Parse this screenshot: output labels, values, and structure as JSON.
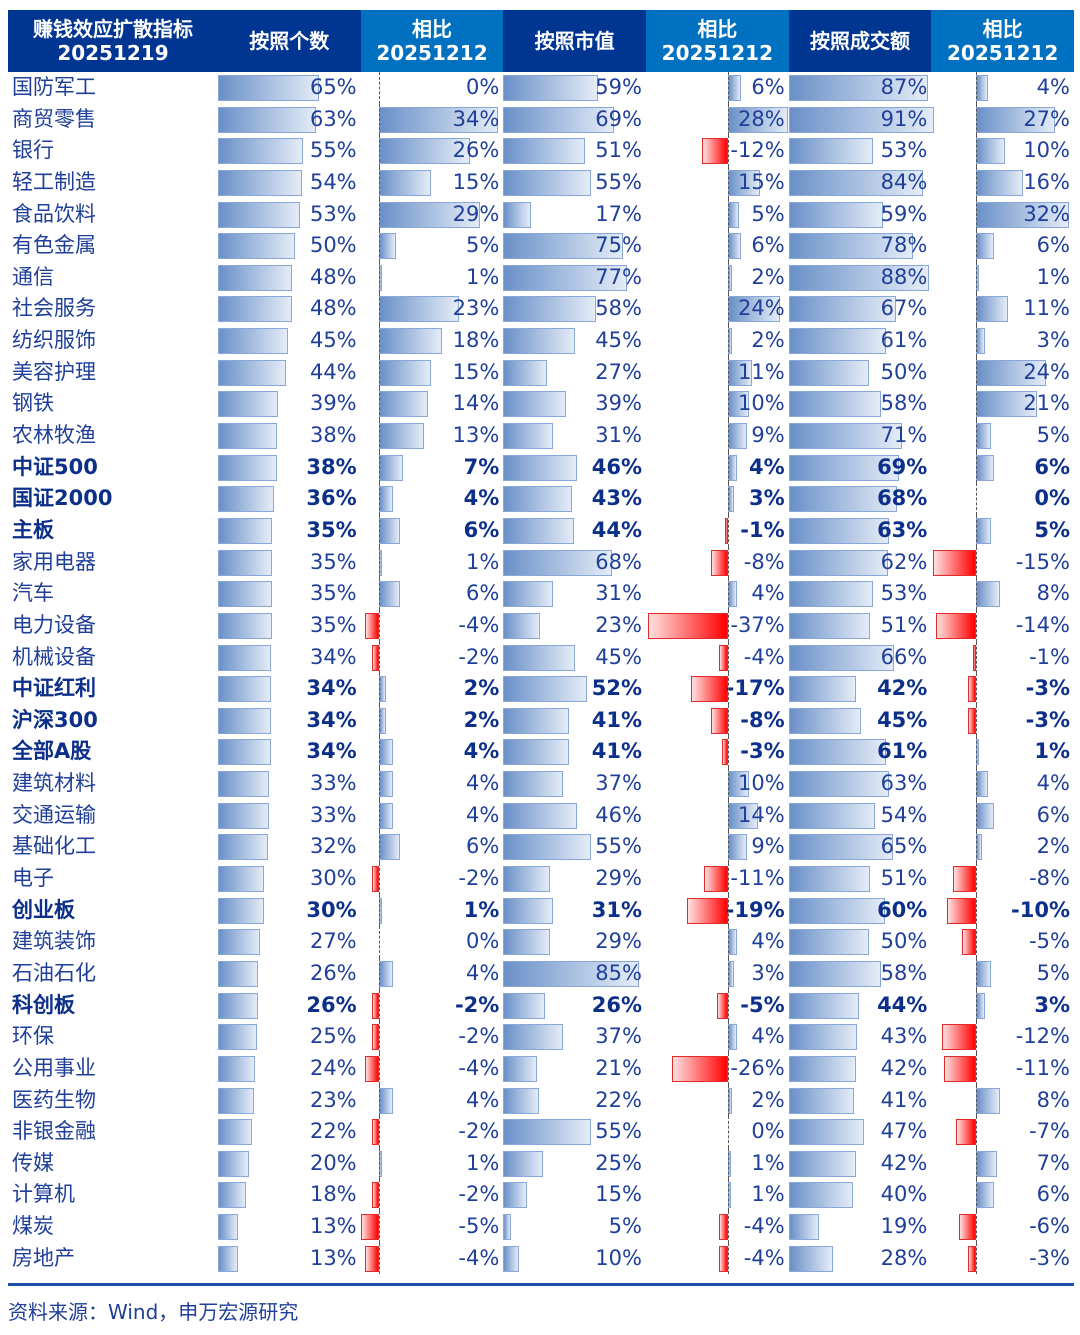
{
  "header": {
    "title_line1": "赚钱效应扩散指标",
    "title_line2": "20251219",
    "columns": [
      {
        "label": "按照个数"
      },
      {
        "label": "相比",
        "sub": "20251212"
      },
      {
        "label": "按照市值"
      },
      {
        "label": "相比",
        "sub": "20251212"
      },
      {
        "label": "按照成交额"
      },
      {
        "label": "相比",
        "sub": "20251212"
      }
    ]
  },
  "colors": {
    "header_dark": "#003591",
    "header_light": "#0070c0",
    "positive_bar": "#6a90c8",
    "negative_bar": "#ff0000",
    "text": "#1f3f99"
  },
  "footer": {
    "source": "资料来源：Wind，申万宏源研究"
  },
  "chart_data": {
    "type": "table",
    "title": "赚钱效应扩散指标 20251219",
    "columns": [
      "按照个数",
      "相比20251212",
      "按照市值",
      "相比20251212",
      "按照成交额",
      "相比20251212"
    ],
    "rows": [
      {
        "name": "国防军工",
        "bold": false,
        "count": 65,
        "count_chg": 0,
        "mktcap": 59,
        "mktcap_chg": 6,
        "turnover": 87,
        "turnover_chg": 4
      },
      {
        "name": "商贸零售",
        "bold": false,
        "count": 63,
        "count_chg": 34,
        "mktcap": 69,
        "mktcap_chg": 28,
        "turnover": 91,
        "turnover_chg": 27
      },
      {
        "name": "银行",
        "bold": false,
        "count": 55,
        "count_chg": 26,
        "mktcap": 51,
        "mktcap_chg": -12,
        "turnover": 53,
        "turnover_chg": 10
      },
      {
        "name": "轻工制造",
        "bold": false,
        "count": 54,
        "count_chg": 15,
        "mktcap": 55,
        "mktcap_chg": 15,
        "turnover": 84,
        "turnover_chg": 16
      },
      {
        "name": "食品饮料",
        "bold": false,
        "count": 53,
        "count_chg": 29,
        "mktcap": 17,
        "mktcap_chg": 5,
        "turnover": 59,
        "turnover_chg": 32
      },
      {
        "name": "有色金属",
        "bold": false,
        "count": 50,
        "count_chg": 5,
        "mktcap": 75,
        "mktcap_chg": 6,
        "turnover": 78,
        "turnover_chg": 6
      },
      {
        "name": "通信",
        "bold": false,
        "count": 48,
        "count_chg": 1,
        "mktcap": 77,
        "mktcap_chg": 2,
        "turnover": 88,
        "turnover_chg": 1
      },
      {
        "name": "社会服务",
        "bold": false,
        "count": 48,
        "count_chg": 23,
        "mktcap": 58,
        "mktcap_chg": 24,
        "turnover": 67,
        "turnover_chg": 11
      },
      {
        "name": "纺织服饰",
        "bold": false,
        "count": 45,
        "count_chg": 18,
        "mktcap": 45,
        "mktcap_chg": 2,
        "turnover": 61,
        "turnover_chg": 3
      },
      {
        "name": "美容护理",
        "bold": false,
        "count": 44,
        "count_chg": 15,
        "mktcap": 27,
        "mktcap_chg": 11,
        "turnover": 50,
        "turnover_chg": 24
      },
      {
        "name": "钢铁",
        "bold": false,
        "count": 39,
        "count_chg": 14,
        "mktcap": 39,
        "mktcap_chg": 10,
        "turnover": 58,
        "turnover_chg": 21
      },
      {
        "name": "农林牧渔",
        "bold": false,
        "count": 38,
        "count_chg": 13,
        "mktcap": 31,
        "mktcap_chg": 9,
        "turnover": 71,
        "turnover_chg": 5
      },
      {
        "name": "中证500",
        "bold": true,
        "count": 38,
        "count_chg": 7,
        "mktcap": 46,
        "mktcap_chg": 4,
        "turnover": 69,
        "turnover_chg": 6
      },
      {
        "name": "国证2000",
        "bold": true,
        "count": 36,
        "count_chg": 4,
        "mktcap": 43,
        "mktcap_chg": 3,
        "turnover": 68,
        "turnover_chg": 0
      },
      {
        "name": "主板",
        "bold": true,
        "count": 35,
        "count_chg": 6,
        "mktcap": 44,
        "mktcap_chg": -1,
        "turnover": 63,
        "turnover_chg": 5
      },
      {
        "name": "家用电器",
        "bold": false,
        "count": 35,
        "count_chg": 1,
        "mktcap": 68,
        "mktcap_chg": -8,
        "turnover": 62,
        "turnover_chg": -15
      },
      {
        "name": "汽车",
        "bold": false,
        "count": 35,
        "count_chg": 6,
        "mktcap": 31,
        "mktcap_chg": 4,
        "turnover": 53,
        "turnover_chg": 8
      },
      {
        "name": "电力设备",
        "bold": false,
        "count": 35,
        "count_chg": -4,
        "mktcap": 23,
        "mktcap_chg": -37,
        "turnover": 51,
        "turnover_chg": -14
      },
      {
        "name": "机械设备",
        "bold": false,
        "count": 34,
        "count_chg": -2,
        "mktcap": 45,
        "mktcap_chg": -4,
        "turnover": 66,
        "turnover_chg": -1
      },
      {
        "name": "中证红利",
        "bold": true,
        "count": 34,
        "count_chg": 2,
        "mktcap": 52,
        "mktcap_chg": -17,
        "turnover": 42,
        "turnover_chg": -3
      },
      {
        "name": "沪深300",
        "bold": true,
        "count": 34,
        "count_chg": 2,
        "mktcap": 41,
        "mktcap_chg": -8,
        "turnover": 45,
        "turnover_chg": -3
      },
      {
        "name": "全部A股",
        "bold": true,
        "count": 34,
        "count_chg": 4,
        "mktcap": 41,
        "mktcap_chg": -3,
        "turnover": 61,
        "turnover_chg": 1
      },
      {
        "name": "建筑材料",
        "bold": false,
        "count": 33,
        "count_chg": 4,
        "mktcap": 37,
        "mktcap_chg": 10,
        "turnover": 63,
        "turnover_chg": 4
      },
      {
        "name": "交通运输",
        "bold": false,
        "count": 33,
        "count_chg": 4,
        "mktcap": 46,
        "mktcap_chg": 14,
        "turnover": 54,
        "turnover_chg": 6
      },
      {
        "name": "基础化工",
        "bold": false,
        "count": 32,
        "count_chg": 6,
        "mktcap": 55,
        "mktcap_chg": 9,
        "turnover": 65,
        "turnover_chg": 2
      },
      {
        "name": "电子",
        "bold": false,
        "count": 30,
        "count_chg": -2,
        "mktcap": 29,
        "mktcap_chg": -11,
        "turnover": 51,
        "turnover_chg": -8
      },
      {
        "name": "创业板",
        "bold": true,
        "count": 30,
        "count_chg": 1,
        "mktcap": 31,
        "mktcap_chg": -19,
        "turnover": 60,
        "turnover_chg": -10
      },
      {
        "name": "建筑装饰",
        "bold": false,
        "count": 27,
        "count_chg": 0,
        "mktcap": 29,
        "mktcap_chg": 4,
        "turnover": 50,
        "turnover_chg": -5
      },
      {
        "name": "石油石化",
        "bold": false,
        "count": 26,
        "count_chg": 4,
        "mktcap": 85,
        "mktcap_chg": 3,
        "turnover": 58,
        "turnover_chg": 5
      },
      {
        "name": "科创板",
        "bold": true,
        "count": 26,
        "count_chg": -2,
        "mktcap": 26,
        "mktcap_chg": -5,
        "turnover": 44,
        "turnover_chg": 3
      },
      {
        "name": "环保",
        "bold": false,
        "count": 25,
        "count_chg": -2,
        "mktcap": 37,
        "mktcap_chg": 4,
        "turnover": 43,
        "turnover_chg": -12
      },
      {
        "name": "公用事业",
        "bold": false,
        "count": 24,
        "count_chg": -4,
        "mktcap": 21,
        "mktcap_chg": -26,
        "turnover": 42,
        "turnover_chg": -11
      },
      {
        "name": "医药生物",
        "bold": false,
        "count": 23,
        "count_chg": 4,
        "mktcap": 22,
        "mktcap_chg": 2,
        "turnover": 41,
        "turnover_chg": 8
      },
      {
        "name": "非银金融",
        "bold": false,
        "count": 22,
        "count_chg": -2,
        "mktcap": 55,
        "mktcap_chg": 0,
        "turnover": 47,
        "turnover_chg": -7
      },
      {
        "name": "传媒",
        "bold": false,
        "count": 20,
        "count_chg": 1,
        "mktcap": 25,
        "mktcap_chg": 1,
        "turnover": 42,
        "turnover_chg": 7
      },
      {
        "name": "计算机",
        "bold": false,
        "count": 18,
        "count_chg": -2,
        "mktcap": 15,
        "mktcap_chg": 1,
        "turnover": 40,
        "turnover_chg": 6
      },
      {
        "name": "煤炭",
        "bold": false,
        "count": 13,
        "count_chg": -5,
        "mktcap": 5,
        "mktcap_chg": -4,
        "turnover": 19,
        "turnover_chg": -6
      },
      {
        "name": "房地产",
        "bold": false,
        "count": 13,
        "count_chg": -4,
        "mktcap": 10,
        "mktcap_chg": -4,
        "turnover": 28,
        "turnover_chg": -3
      }
    ]
  }
}
